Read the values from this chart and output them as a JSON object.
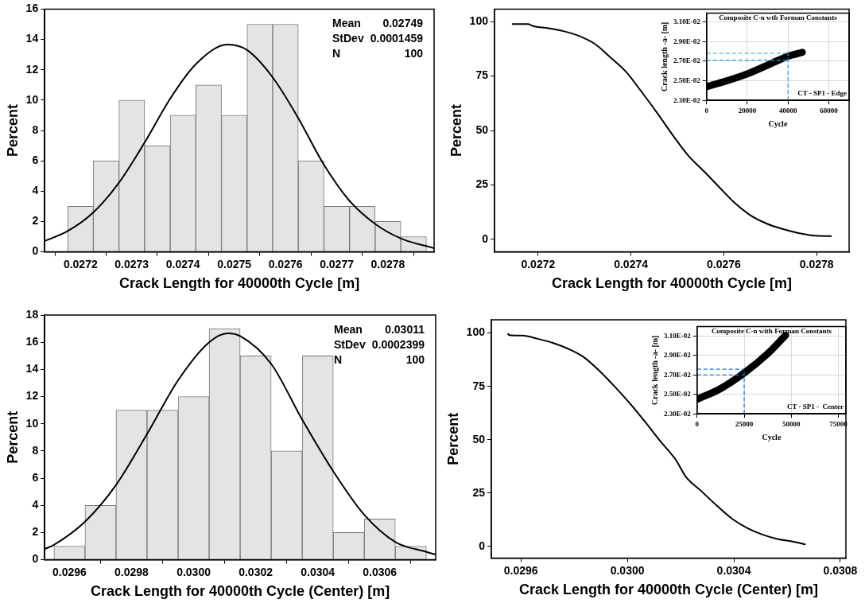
{
  "chart_data": [
    {
      "type": "histogram",
      "xlabel": "Crack Length for 40000th Cycle [m]",
      "ylabel": "Percent",
      "bins": [
        0.027175,
        0.027225,
        0.027275,
        0.027325,
        0.027375,
        0.027425,
        0.027475,
        0.027525,
        0.027575,
        0.027625,
        0.027675,
        0.027725,
        0.027775,
        0.027825,
        0.027875
      ],
      "values": [
        3,
        6,
        10,
        7,
        9,
        11,
        9,
        15,
        15,
        6,
        3,
        3,
        2,
        1
      ],
      "color": "#e4e4e4",
      "series": [
        {
          "type": "line",
          "color": "#000000",
          "x": [
            0.02713,
            0.027175,
            0.027225,
            0.027275,
            0.027325,
            0.027375,
            0.027426,
            0.027487,
            0.027525,
            0.027575,
            0.027624,
            0.027674,
            0.027724,
            0.027775,
            0.027824,
            0.02789
          ],
          "values": [
            0.71,
            1.37,
            2.6,
            4.56,
            7.2,
            10.1,
            12.4,
            13.66,
            13.3,
            11.5,
            8.87,
            5.8,
            3.4,
            1.84,
            0.9,
            0.24
          ]
        }
      ],
      "xlim": [
        0.02713,
        0.02789
      ],
      "xticks": [
        0.0272,
        0.0273,
        0.0274,
        0.0275,
        0.0276,
        0.0277,
        0.0278
      ],
      "ylim": [
        0,
        16
      ],
      "yticks": [
        0,
        2,
        4,
        6,
        8,
        10,
        12,
        14,
        16
      ],
      "annotations": [
        "Mean",
        "0.02749",
        "StDev",
        "0.0001459",
        "N",
        "100"
      ],
      "grid": false,
      "marker": "none"
    },
    {
      "type": "line",
      "xlabel": "Crack Length for 40000th Cycle [m]",
      "ylabel": "Percent",
      "series": [
        {
          "color": "#000000",
          "x": [
            0.027145,
            0.027178,
            0.027189,
            0.027222,
            0.027256,
            0.027289,
            0.027323,
            0.027356,
            0.02739,
            0.027423,
            0.027457,
            0.027491,
            0.027524,
            0.027558,
            0.027591,
            0.027625,
            0.027658,
            0.027692,
            0.027725,
            0.027759,
            0.027792,
            0.027831
          ],
          "values": [
            98.8,
            98.8,
            97.9,
            96.9,
            95.5,
            93.3,
            89.6,
            83.5,
            76.8,
            67.7,
            57.9,
            47.6,
            38.4,
            31.1,
            23.8,
            16.5,
            11.0,
            7.3,
            4.9,
            3.0,
            1.8,
            1.5
          ]
        }
      ],
      "xlim": [
        0.027106,
        0.02787
      ],
      "xticks": [
        0.0272,
        0.0274,
        0.0276,
        0.0278
      ],
      "ylim": [
        -5.7,
        105.7
      ],
      "yticks": [
        0,
        25,
        50,
        75,
        100
      ],
      "grid": false,
      "marker": "none"
    },
    {
      "type": "line",
      "title": "Composite C-n wth Forman Constants",
      "xlabel": "Cycle",
      "ylabel": "Crack length -a- [m]",
      "series": [
        {
          "color": "#000000",
          "x": [
            0,
            10000,
            20000,
            30000,
            40000,
            47000
          ],
          "values": [
            0.0244,
            0.025,
            0.0257,
            0.0266,
            0.0275,
            0.0279
          ]
        }
      ],
      "xlim": [
        0,
        70000
      ],
      "xticks": [
        0,
        20000,
        40000,
        60000
      ],
      "ylim": [
        0.023,
        0.0319
      ],
      "yticks": [
        {
          "value": 0.023,
          "label": "2.30E-02"
        },
        {
          "value": 0.025,
          "label": "2.50E-02"
        },
        {
          "value": 0.027,
          "label": "2.70E-02"
        },
        {
          "value": 0.029,
          "label": "2.90E-02"
        },
        {
          "value": 0.031,
          "label": "3.10E-02"
        }
      ],
      "ref_lines": [
        {
          "axis": "y",
          "value": 0.0278,
          "color": "#29a3e0",
          "line_style": "dashed"
        },
        {
          "axis": "y",
          "value": 0.0271,
          "color": "#29a3e0",
          "line_style": "dashed"
        },
        {
          "axis": "x",
          "value": 40000,
          "color": "#29a3e0",
          "line_style": "dashed"
        }
      ],
      "annotations": [
        "CT - SP1 - Edge"
      ],
      "grid": true,
      "marker": "none"
    },
    {
      "type": "histogram",
      "xlabel": "Crack Length for 40000th Cycle (Center) [m]",
      "ylabel": "Percent",
      "bins": [
        0.02955,
        0.02965,
        0.02975,
        0.02985,
        0.02995,
        0.03005,
        0.03015,
        0.03025,
        0.03035,
        0.03045,
        0.03055,
        0.03065,
        0.03075
      ],
      "values": [
        1,
        4,
        11,
        11,
        12,
        17,
        15,
        8,
        15,
        2,
        3,
        1
      ],
      "color": "#e4e4e4",
      "series": [
        {
          "type": "line",
          "color": "#000000",
          "x": [
            0.02952,
            0.02955,
            0.02965,
            0.02975,
            0.02985,
            0.02995,
            0.03005,
            0.03011,
            0.03015,
            0.03025,
            0.03035,
            0.03045,
            0.03055,
            0.03065,
            0.03075,
            0.03078
          ],
          "values": [
            0.79,
            1.1,
            2.8,
            5.5,
            9.25,
            13.2,
            16.0,
            16.66,
            16.45,
            14.4,
            10.3,
            6.5,
            3.3,
            1.3,
            0.58,
            0.38
          ]
        }
      ],
      "xlim": [
        0.02952,
        0.03078
      ],
      "xticks": [
        {
          "value": 0.0296,
          "label": "0.0296"
        },
        {
          "value": 0.0298,
          "label": "0.0298"
        },
        {
          "value": 0.03,
          "label": "0.0300"
        },
        {
          "value": 0.0302,
          "label": "0.0302"
        },
        {
          "value": 0.0304,
          "label": "0.0304"
        },
        {
          "value": 0.0306,
          "label": "0.0306"
        }
      ],
      "ylim": [
        0,
        18
      ],
      "yticks": [
        0,
        2,
        4,
        6,
        8,
        10,
        12,
        14,
        16,
        18
      ],
      "annotations": [
        "Mean",
        "0.03011",
        "StDev",
        "0.0002399",
        "N",
        "100"
      ],
      "grid": false,
      "marker": "none"
    },
    {
      "type": "line",
      "xlabel": "Crack Length for 40000th Cycle (Center) [m]",
      "ylabel": "Percent",
      "series": [
        {
          "color": "#000000",
          "x": [
            0.029552,
            0.029557,
            0.029605,
            0.029663,
            0.02972,
            0.029778,
            0.029836,
            0.029893,
            0.029951,
            0.030009,
            0.030066,
            0.030124,
            0.030182,
            0.03022,
            0.030278,
            0.030336,
            0.030394,
            0.030451,
            0.030509,
            0.030567,
            0.030624,
            0.030667
          ],
          "values": [
            99.6,
            99.0,
            98.8,
            97.3,
            95.4,
            92.6,
            88.7,
            82.5,
            75.1,
            67.1,
            58.5,
            49.3,
            40.6,
            32.6,
            25.9,
            19.1,
            12.9,
            8.6,
            5.5,
            3.4,
            2.2,
            1.0
          ]
        }
      ],
      "xlim": [
        0.029489,
        0.030821
      ],
      "xticks": [
        {
          "value": 0.0296,
          "label": "0.0296"
        },
        {
          "value": 0.03,
          "label": "0.0300"
        },
        {
          "value": 0.0304,
          "label": "0.0304"
        },
        {
          "value": 0.0308,
          "label": "0.0308"
        }
      ],
      "ylim": [
        -5.5,
        106.2
      ],
      "yticks": [
        0,
        25,
        50,
        75,
        100
      ],
      "grid": false,
      "marker": "none"
    },
    {
      "type": "line",
      "title": "Composite C-n with Forman Constants",
      "xlabel": "Cycle",
      "ylabel": "Crack length -a- [m]",
      "series": [
        {
          "color": "#000000",
          "x": [
            0,
            12500,
            25000,
            37500,
            47000
          ],
          "values": [
            0.0245,
            0.0256,
            0.0272,
            0.0292,
            0.0311
          ]
        }
      ],
      "xlim": [
        0,
        79000
      ],
      "xticks": [
        0,
        25000,
        50000,
        75000
      ],
      "ylim": [
        0.023,
        0.032
      ],
      "yticks": [
        {
          "value": 0.023,
          "label": "2.30E-02"
        },
        {
          "value": 0.025,
          "label": "2.50E-02"
        },
        {
          "value": 0.027,
          "label": "2.70E-02"
        },
        {
          "value": 0.029,
          "label": "2.90E-02"
        },
        {
          "value": 0.031,
          "label": "3.10E-02"
        }
      ],
      "ref_lines": [
        {
          "axis": "y",
          "value": 0.0276,
          "color": "#1f77d0",
          "line_style": "dashed"
        },
        {
          "axis": "y",
          "value": 0.027,
          "color": "#1f77d0",
          "line_style": "dashed"
        },
        {
          "axis": "x",
          "value": 25000,
          "color": "#1f77d0",
          "line_style": "dashed"
        }
      ],
      "annotations": [
        "CT - SP1 -  Center"
      ],
      "grid": true,
      "marker": "none"
    }
  ]
}
